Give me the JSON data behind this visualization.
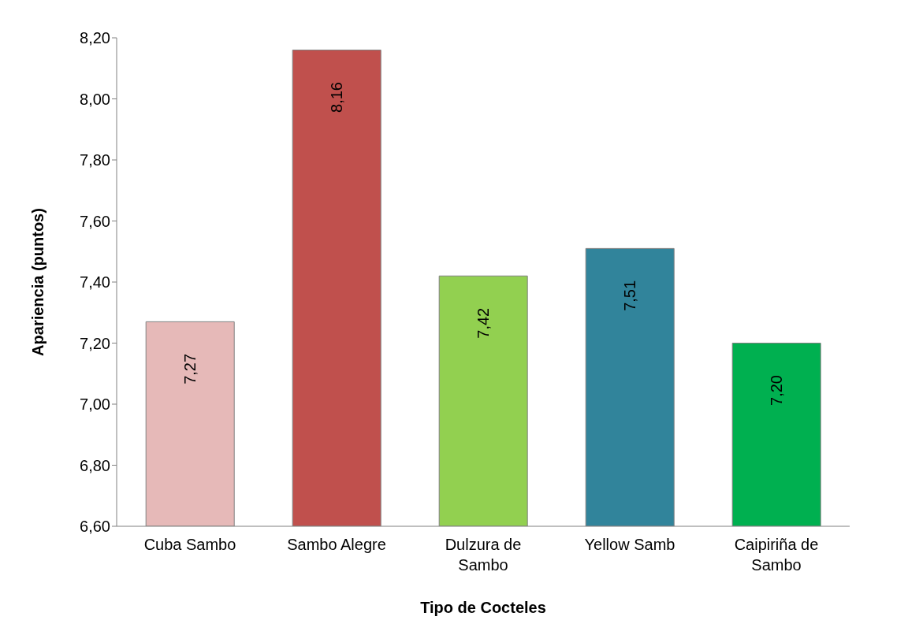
{
  "chart_data": {
    "type": "bar",
    "xlabel": "Tipo de Cocteles",
    "ylabel": "Apariencia (puntos)",
    "categories": [
      "Cuba Sambo",
      "Sambo Alegre",
      "Dulzura de Sambo",
      "Yellow Samb",
      "Caipiriña de Sambo"
    ],
    "values": [
      7.27,
      8.16,
      7.42,
      7.51,
      7.2
    ],
    "value_labels": [
      "7,27",
      "8,16",
      "7,42",
      "7,51",
      "7,20"
    ],
    "colors": [
      "#e6b9b8",
      "#c0504d",
      "#92d050",
      "#31849b",
      "#00b050"
    ],
    "ylim": [
      6.6,
      8.2
    ],
    "yticks": [
      {
        "value": 6.6,
        "label": "6,60"
      },
      {
        "value": 6.8,
        "label": "6,80"
      },
      {
        "value": 7.0,
        "label": "7,00"
      },
      {
        "value": 7.2,
        "label": "7,20"
      },
      {
        "value": 7.4,
        "label": "7,40"
      },
      {
        "value": 7.6,
        "label": "7,60"
      },
      {
        "value": 7.8,
        "label": "7,80"
      },
      {
        "value": 8.0,
        "label": "8,00"
      },
      {
        "value": 8.2,
        "label": "8,20"
      }
    ],
    "grid": false,
    "legend": false
  }
}
